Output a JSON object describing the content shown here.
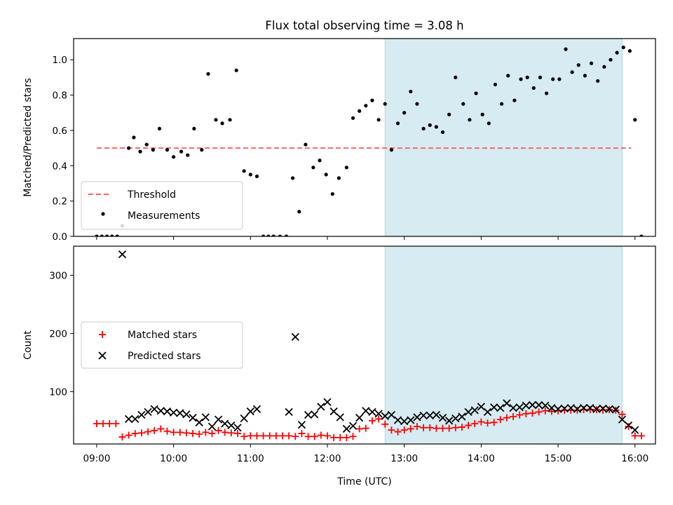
{
  "title": "Flux total observing time = 3.08 h",
  "colors": {
    "highlight": "#add8e6",
    "threshold": "#ff6666",
    "measurement": "#000000",
    "matched": "#ff0000",
    "predicted": "#000000"
  },
  "chart_data": [
    {
      "type": "scatter",
      "ylabel": "Matched/Predicted stars",
      "xlim": [
        "08:42",
        "16:16"
      ],
      "ylim": [
        0,
        1.12
      ],
      "yticks": [
        0.0,
        0.2,
        0.4,
        0.6,
        0.8,
        1.0
      ],
      "ytick_labels": [
        "0.0",
        "0.2",
        "0.4",
        "0.6",
        "0.8",
        "1.0"
      ],
      "highlight_span": [
        "12:45",
        "15:50"
      ],
      "threshold": {
        "name": "Threshold",
        "y": 0.5,
        "x_range": [
          "09:00",
          "15:57"
        ]
      },
      "legend": {
        "location": "lower-left",
        "entries": [
          "Threshold",
          "Measurements"
        ]
      },
      "series": [
        {
          "name": "Measurements",
          "marker": "dot",
          "points": [
            [
              "09:00",
              0.0
            ],
            [
              "09:04",
              0.0
            ],
            [
              "09:08",
              0.0
            ],
            [
              "09:12",
              0.0
            ],
            [
              "09:16",
              0.0
            ],
            [
              "09:20",
              0.06
            ],
            [
              "09:25",
              0.5
            ],
            [
              "09:29",
              0.56
            ],
            [
              "09:34",
              0.48
            ],
            [
              "09:39",
              0.52
            ],
            [
              "09:44",
              0.49
            ],
            [
              "09:49",
              0.61
            ],
            [
              "09:55",
              0.49
            ],
            [
              "10:00",
              0.45
            ],
            [
              "10:06",
              0.48
            ],
            [
              "10:11",
              0.46
            ],
            [
              "10:16",
              0.61
            ],
            [
              "10:22",
              0.49
            ],
            [
              "10:27",
              0.92
            ],
            [
              "10:33",
              0.66
            ],
            [
              "10:38",
              0.64
            ],
            [
              "10:44",
              0.66
            ],
            [
              "10:49",
              0.94
            ],
            [
              "10:55",
              0.37
            ],
            [
              "11:00",
              0.35
            ],
            [
              "11:05",
              0.34
            ],
            [
              "11:10",
              0.0
            ],
            [
              "11:14",
              0.0
            ],
            [
              "11:18",
              0.0
            ],
            [
              "11:23",
              0.0
            ],
            [
              "11:28",
              0.0
            ],
            [
              "11:33",
              0.33
            ],
            [
              "11:38",
              0.14
            ],
            [
              "11:43",
              0.52
            ],
            [
              "11:49",
              0.39
            ],
            [
              "11:54",
              0.43
            ],
            [
              "11:59",
              0.35
            ],
            [
              "12:04",
              0.24
            ],
            [
              "12:09",
              0.33
            ],
            [
              "12:15",
              0.39
            ],
            [
              "12:20",
              0.67
            ],
            [
              "12:25",
              0.71
            ],
            [
              "12:30",
              0.74
            ],
            [
              "12:35",
              0.77
            ],
            [
              "12:40",
              0.66
            ],
            [
              "12:45",
              0.75
            ],
            [
              "12:50",
              0.49
            ],
            [
              "12:55",
              0.64
            ],
            [
              "13:00",
              0.7
            ],
            [
              "13:05",
              0.82
            ],
            [
              "13:10",
              0.75
            ],
            [
              "13:15",
              0.61
            ],
            [
              "13:20",
              0.63
            ],
            [
              "13:25",
              0.62
            ],
            [
              "13:30",
              0.59
            ],
            [
              "13:35",
              0.69
            ],
            [
              "13:40",
              0.9
            ],
            [
              "13:46",
              0.75
            ],
            [
              "13:51",
              0.66
            ],
            [
              "13:56",
              0.81
            ],
            [
              "14:01",
              0.69
            ],
            [
              "14:06",
              0.64
            ],
            [
              "14:11",
              0.86
            ],
            [
              "14:16",
              0.75
            ],
            [
              "14:21",
              0.91
            ],
            [
              "14:26",
              0.77
            ],
            [
              "14:31",
              0.89
            ],
            [
              "14:36",
              0.9
            ],
            [
              "14:41",
              0.84
            ],
            [
              "14:46",
              0.9
            ],
            [
              "14:51",
              0.81
            ],
            [
              "14:56",
              0.89
            ],
            [
              "15:01",
              0.89
            ],
            [
              "15:06",
              1.06
            ],
            [
              "15:11",
              0.93
            ],
            [
              "15:16",
              0.97
            ],
            [
              "15:21",
              0.91
            ],
            [
              "15:26",
              0.98
            ],
            [
              "15:31",
              0.88
            ],
            [
              "15:36",
              0.96
            ],
            [
              "15:41",
              1.0
            ],
            [
              "15:46",
              1.04
            ],
            [
              "15:51",
              1.07
            ],
            [
              "15:56",
              1.05
            ],
            [
              "16:00",
              0.66
            ],
            [
              "16:05",
              0.0
            ]
          ]
        }
      ]
    },
    {
      "type": "scatter",
      "xlabel": "Time (UTC)",
      "ylabel": "Count",
      "xlim": [
        "08:42",
        "16:16"
      ],
      "ylim": [
        10,
        350
      ],
      "yticks": [
        100,
        200,
        300
      ],
      "ytick_labels": [
        "100",
        "200",
        "300"
      ],
      "xticks": [
        "09:00",
        "10:00",
        "11:00",
        "12:00",
        "13:00",
        "14:00",
        "15:00",
        "16:00"
      ],
      "xtick_labels": [
        "09:00",
        "10:00",
        "11:00",
        "12:00",
        "13:00",
        "14:00",
        "15:00",
        "16:00"
      ],
      "highlight_span": [
        "12:45",
        "15:50"
      ],
      "legend": {
        "location": "center-left",
        "entries": [
          "Matched stars",
          "Predicted stars"
        ]
      },
      "series": [
        {
          "name": "Matched stars",
          "marker": "plus",
          "points": [
            [
              "09:00",
              45
            ],
            [
              "09:05",
              45
            ],
            [
              "09:10",
              45
            ],
            [
              "09:15",
              45
            ],
            [
              "09:20",
              22
            ],
            [
              "09:25",
              25
            ],
            [
              "09:30",
              28
            ],
            [
              "09:35",
              29
            ],
            [
              "09:40",
              31
            ],
            [
              "09:45",
              33
            ],
            [
              "09:50",
              36
            ],
            [
              "09:55",
              32
            ],
            [
              "10:00",
              30
            ],
            [
              "10:05",
              30
            ],
            [
              "10:10",
              29
            ],
            [
              "10:15",
              28
            ],
            [
              "10:20",
              27
            ],
            [
              "10:25",
              30
            ],
            [
              "10:30",
              28
            ],
            [
              "10:35",
              33
            ],
            [
              "10:40",
              30
            ],
            [
              "10:45",
              29
            ],
            [
              "10:50",
              28
            ],
            [
              "10:55",
              23
            ],
            [
              "11:00",
              24
            ],
            [
              "11:05",
              24
            ],
            [
              "11:10",
              24
            ],
            [
              "11:15",
              24
            ],
            [
              "11:20",
              24
            ],
            [
              "11:25",
              24
            ],
            [
              "11:30",
              24
            ],
            [
              "11:35",
              23
            ],
            [
              "11:40",
              28
            ],
            [
              "11:45",
              23
            ],
            [
              "11:50",
              23
            ],
            [
              "11:55",
              25
            ],
            [
              "12:00",
              24
            ],
            [
              "12:05",
              21
            ],
            [
              "12:10",
              21
            ],
            [
              "12:15",
              21
            ],
            [
              "12:20",
              23
            ],
            [
              "12:25",
              36
            ],
            [
              "12:30",
              37
            ],
            [
              "12:35",
              50
            ],
            [
              "12:40",
              53
            ],
            [
              "12:45",
              44
            ],
            [
              "12:50",
              34
            ],
            [
              "12:55",
              31
            ],
            [
              "13:00",
              34
            ],
            [
              "13:05",
              36
            ],
            [
              "13:10",
              40
            ],
            [
              "13:15",
              38
            ],
            [
              "13:20",
              38
            ],
            [
              "13:25",
              37
            ],
            [
              "13:30",
              37
            ],
            [
              "13:35",
              37
            ],
            [
              "13:40",
              38
            ],
            [
              "13:45",
              39
            ],
            [
              "13:50",
              42
            ],
            [
              "13:55",
              45
            ],
            [
              "14:00",
              48
            ],
            [
              "14:05",
              46
            ],
            [
              "14:10",
              47
            ],
            [
              "14:15",
              52
            ],
            [
              "14:20",
              55
            ],
            [
              "14:25",
              57
            ],
            [
              "14:30",
              60
            ],
            [
              "14:35",
              62
            ],
            [
              "14:40",
              63
            ],
            [
              "14:45",
              65
            ],
            [
              "14:50",
              67
            ],
            [
              "14:55",
              66
            ],
            [
              "15:00",
              67
            ],
            [
              "15:05",
              68
            ],
            [
              "15:10",
              68
            ],
            [
              "15:15",
              68
            ],
            [
              "15:20",
              69
            ],
            [
              "15:25",
              69
            ],
            [
              "15:30",
              69
            ],
            [
              "15:35",
              68
            ],
            [
              "15:40",
              69
            ],
            [
              "15:45",
              68
            ],
            [
              "15:50",
              61
            ],
            [
              "15:55",
              40
            ],
            [
              "16:00",
              24
            ],
            [
              "16:05",
              24
            ]
          ]
        },
        {
          "name": "Predicted stars",
          "marker": "x",
          "points": [
            [
              "09:20",
              336
            ],
            [
              "09:25",
              53
            ],
            [
              "09:30",
              53
            ],
            [
              "09:35",
              60
            ],
            [
              "09:40",
              65
            ],
            [
              "09:45",
              70
            ],
            [
              "09:50",
              67
            ],
            [
              "09:55",
              66
            ],
            [
              "10:00",
              64
            ],
            [
              "10:05",
              63
            ],
            [
              "10:10",
              61
            ],
            [
              "10:15",
              55
            ],
            [
              "10:20",
              47
            ],
            [
              "10:25",
              56
            ],
            [
              "10:30",
              40
            ],
            [
              "10:35",
              52
            ],
            [
              "10:40",
              45
            ],
            [
              "10:45",
              42
            ],
            [
              "10:50",
              38
            ],
            [
              "10:55",
              54
            ],
            [
              "11:00",
              66
            ],
            [
              "11:05",
              70
            ],
            [
              "11:30",
              65
            ],
            [
              "11:35",
              194
            ],
            [
              "11:40",
              43
            ],
            [
              "11:45",
              60
            ],
            [
              "11:50",
              61
            ],
            [
              "11:55",
              74
            ],
            [
              "12:00",
              82
            ],
            [
              "12:05",
              66
            ],
            [
              "12:10",
              56
            ],
            [
              "12:15",
              36
            ],
            [
              "12:20",
              41
            ],
            [
              "12:25",
              55
            ],
            [
              "12:30",
              67
            ],
            [
              "12:35",
              65
            ],
            [
              "12:40",
              62
            ],
            [
              "12:45",
              58
            ],
            [
              "12:50",
              60
            ],
            [
              "12:55",
              51
            ],
            [
              "13:00",
              49
            ],
            [
              "13:05",
              51
            ],
            [
              "13:10",
              56
            ],
            [
              "13:15",
              59
            ],
            [
              "13:20",
              59
            ],
            [
              "13:25",
              60
            ],
            [
              "13:30",
              55
            ],
            [
              "13:35",
              50
            ],
            [
              "13:40",
              54
            ],
            [
              "13:45",
              57
            ],
            [
              "13:50",
              65
            ],
            [
              "13:55",
              68
            ],
            [
              "14:00",
              74
            ],
            [
              "14:05",
              65
            ],
            [
              "14:10",
              73
            ],
            [
              "14:15",
              72
            ],
            [
              "14:20",
              80
            ],
            [
              "14:25",
              72
            ],
            [
              "14:30",
              73
            ],
            [
              "14:35",
              76
            ],
            [
              "14:40",
              77
            ],
            [
              "14:45",
              77
            ],
            [
              "14:50",
              76
            ],
            [
              "14:55",
              72
            ],
            [
              "15:00",
              70
            ],
            [
              "15:05",
              71
            ],
            [
              "15:10",
              72
            ],
            [
              "15:15",
              70
            ],
            [
              "15:20",
              72
            ],
            [
              "15:25",
              72
            ],
            [
              "15:30",
              70
            ],
            [
              "15:35",
              71
            ],
            [
              "15:40",
              70
            ],
            [
              "15:45",
              69
            ],
            [
              "15:50",
              52
            ],
            [
              "15:55",
              42
            ],
            [
              "16:00",
              34
            ]
          ]
        }
      ]
    }
  ]
}
